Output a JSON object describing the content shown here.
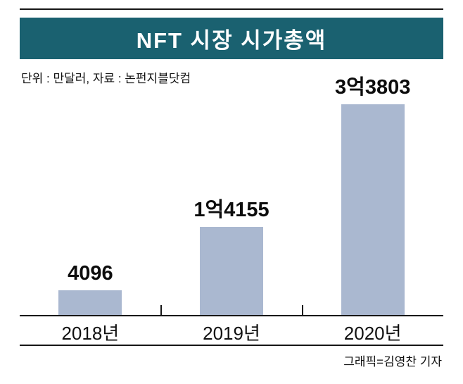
{
  "colors": {
    "title_bar": "#1a6170",
    "bar": "#aab8d0",
    "rule": "#161616"
  },
  "header": {
    "title": "NFT 시장 시가총액"
  },
  "meta": {
    "unit_source": "단위 : 만달러, 자료 : 논펀지블닷컴",
    "credit": "그래픽=김영찬 기자"
  },
  "chart_data": {
    "type": "bar",
    "title": "NFT 시장 시가총액",
    "unit": "만달러",
    "source": "논펀지블닷컴",
    "categories": [
      "2018년",
      "2019년",
      "2020년"
    ],
    "values": [
      4096,
      14155,
      33803
    ],
    "value_labels": [
      "4096",
      "1억4155",
      "3억3803"
    ],
    "xlabel": "",
    "ylabel": "",
    "ylim": [
      0,
      33803
    ],
    "grid": false,
    "legend": false
  }
}
